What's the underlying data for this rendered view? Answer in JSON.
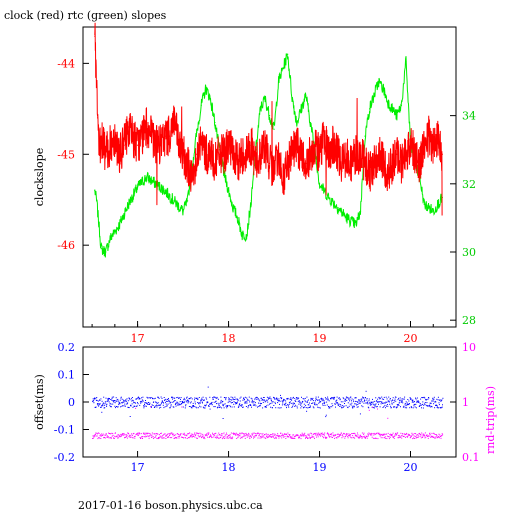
{
  "title": "clock (red) rtc (green) slopes",
  "footer": "2017-01-16 boson.physics.ubc.ca",
  "colors": {
    "clock": "#ff0000",
    "rtc": "#00ee00",
    "offset": "#0000ff",
    "rndtrip": "#ff00ff",
    "axes": "#000000"
  },
  "chart_data": [
    {
      "type": "line",
      "ylabel": "clockslope",
      "ylabel_right": "",
      "xlim": [
        16.4,
        20.5
      ],
      "ylim": [
        -46.9,
        -43.6
      ],
      "y2lim": [
        27.8,
        36.6
      ],
      "x_ticks": [
        "17",
        "18",
        "19",
        "20"
      ],
      "y_ticks": [
        "-44",
        "-45",
        "-46"
      ],
      "y2_ticks": [
        "28",
        "30",
        "32",
        "34"
      ],
      "grid": false,
      "series": [
        {
          "name": "clock",
          "axis": "left",
          "color": "#ff0000",
          "x": [
            16.53,
            16.56,
            16.58,
            16.6,
            16.65,
            16.7,
            16.75,
            16.8,
            16.85,
            16.9,
            16.95,
            17.0,
            17.05,
            17.1,
            17.15,
            17.2,
            17.25,
            17.3,
            17.35,
            17.4,
            17.45,
            17.5,
            17.55,
            17.6,
            17.65,
            17.7,
            17.75,
            17.8,
            17.85,
            17.9,
            17.95,
            18.0,
            18.05,
            18.1,
            18.15,
            18.2,
            18.25,
            18.3,
            18.35,
            18.4,
            18.45,
            18.5,
            18.55,
            18.6,
            18.65,
            18.7,
            18.75,
            18.8,
            18.85,
            18.9,
            18.95,
            19.0,
            19.05,
            19.1,
            19.15,
            19.2,
            19.25,
            19.3,
            19.35,
            19.4,
            19.45,
            19.5,
            19.55,
            19.6,
            19.65,
            19.7,
            19.75,
            19.8,
            19.85,
            19.9,
            19.95,
            20.0,
            20.05,
            20.1,
            20.15,
            20.2,
            20.25,
            20.3,
            20.35
          ],
          "values": [
            -43.7,
            -44.6,
            -45.0,
            -44.8,
            -45.0,
            -44.9,
            -44.8,
            -45.0,
            -44.9,
            -44.7,
            -44.8,
            -44.9,
            -44.8,
            -44.7,
            -44.8,
            -44.9,
            -44.9,
            -44.8,
            -44.8,
            -44.6,
            -44.9,
            -45.0,
            -45.1,
            -45.3,
            -45.0,
            -44.9,
            -45.0,
            -45.0,
            -45.1,
            -45.0,
            -45.0,
            -44.9,
            -45.0,
            -45.1,
            -45.0,
            -45.0,
            -44.9,
            -45.1,
            -45.0,
            -44.9,
            -45.1,
            -45.2,
            -45.0,
            -45.3,
            -45.1,
            -45.0,
            -44.9,
            -45.0,
            -45.1,
            -45.0,
            -44.9,
            -45.0,
            -44.8,
            -45.0,
            -44.9,
            -45.0,
            -45.1,
            -45.0,
            -45.1,
            -45.0,
            -45.0,
            -45.1,
            -45.2,
            -45.1,
            -45.0,
            -45.1,
            -45.2,
            -45.1,
            -45.0,
            -45.1,
            -45.0,
            -44.9,
            -45.0,
            -45.1,
            -44.9,
            -44.8,
            -44.9,
            -44.8,
            -45.0
          ]
        },
        {
          "name": "rtc",
          "axis": "right",
          "color": "#00ee00",
          "x": [
            16.53,
            16.55,
            16.6,
            16.65,
            16.7,
            16.8,
            16.9,
            17.0,
            17.1,
            17.2,
            17.3,
            17.4,
            17.5,
            17.55,
            17.6,
            17.65,
            17.7,
            17.75,
            17.8,
            17.85,
            17.9,
            17.95,
            18.0,
            18.05,
            18.1,
            18.15,
            18.2,
            18.25,
            18.3,
            18.35,
            18.4,
            18.45,
            18.5,
            18.55,
            18.6,
            18.65,
            18.7,
            18.75,
            18.8,
            18.85,
            18.9,
            18.95,
            19.0,
            19.1,
            19.2,
            19.3,
            19.4,
            19.45,
            19.5,
            19.55,
            19.6,
            19.65,
            19.7,
            19.75,
            19.8,
            19.85,
            19.9,
            19.95,
            20.0,
            20.05,
            20.1,
            20.15,
            20.2,
            20.25,
            20.3,
            20.35
          ],
          "values": [
            31.8,
            31.5,
            30.1,
            30.0,
            30.4,
            30.8,
            31.4,
            31.9,
            32.2,
            32.0,
            31.8,
            31.5,
            31.2,
            31.5,
            32.5,
            33.5,
            34.3,
            34.8,
            34.5,
            33.8,
            33.0,
            32.3,
            31.8,
            31.3,
            31.0,
            30.5,
            30.5,
            31.5,
            33.0,
            34.2,
            34.5,
            34.0,
            33.6,
            35.0,
            35.4,
            35.8,
            34.5,
            33.8,
            34.2,
            34.6,
            33.8,
            33.0,
            32.0,
            31.6,
            31.3,
            31.0,
            30.8,
            31.2,
            33.4,
            34.2,
            34.6,
            35.0,
            34.8,
            34.4,
            34.2,
            34.0,
            34.3,
            35.6,
            33.2,
            32.6,
            32.2,
            31.4,
            31.3,
            31.2,
            31.4,
            31.6
          ]
        }
      ]
    },
    {
      "type": "scatter",
      "ylabel": "offset(ms)",
      "ylabel_right": "rnd-trip(ms)",
      "xlim": [
        16.4,
        20.5
      ],
      "ylim": [
        -0.2,
        0.2
      ],
      "y2lim": [
        0.1,
        10
      ],
      "y2_scale": "log",
      "x_ticks": [
        "17",
        "18",
        "19",
        "20"
      ],
      "y_ticks": [
        "0.2",
        "0.1",
        "0",
        "-0.1",
        "-0.2"
      ],
      "y2_ticks": [
        "10",
        "1",
        "0.1"
      ],
      "grid": false,
      "series": [
        {
          "name": "offset",
          "axis": "left",
          "color": "#0000ff",
          "x": [
            16.5,
            20.35
          ],
          "values": [
            0.0,
            0.0
          ],
          "spread": 0.02
        },
        {
          "name": "rnd-trip",
          "axis": "right",
          "color": "#ff00ff",
          "x": [
            16.5,
            20.35
          ],
          "values": [
            0.25,
            0.25
          ],
          "spread": 0.03
        }
      ]
    }
  ]
}
